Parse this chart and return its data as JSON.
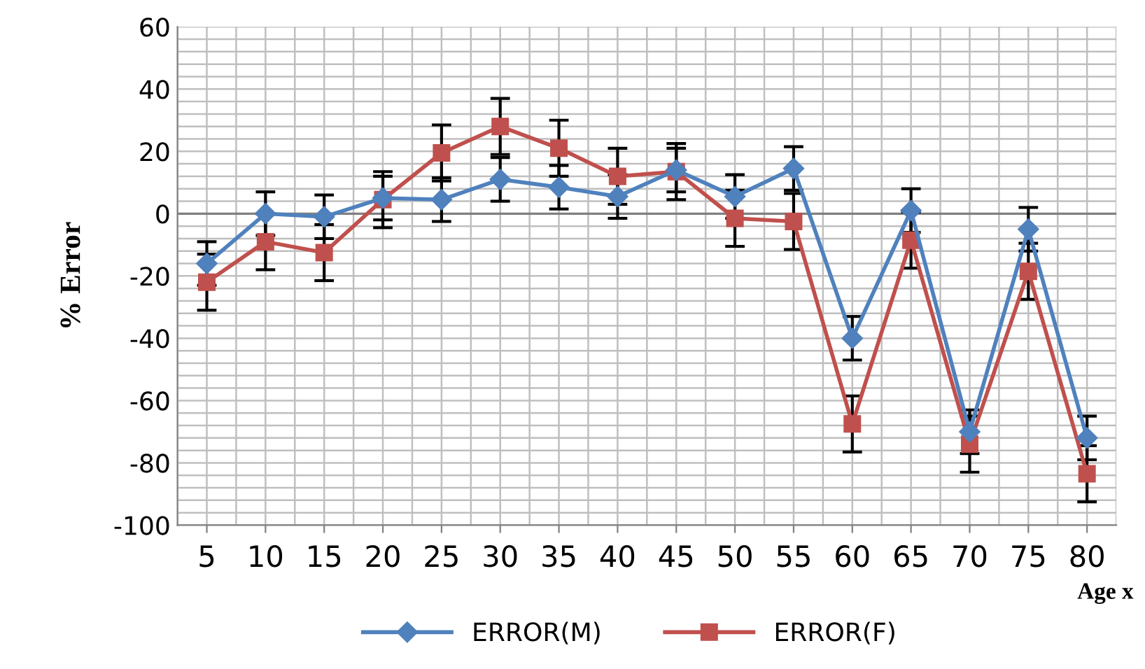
{
  "chart_data": {
    "type": "line",
    "xlabel": "Age x",
    "ylabel": "% Error",
    "categories": [
      "5",
      "10",
      "15",
      "20",
      "25",
      "30",
      "35",
      "40",
      "45",
      "50",
      "55",
      "60",
      "65",
      "70",
      "75",
      "80"
    ],
    "series": [
      {
        "name": "ERROR(M)",
        "color": "#4f81bd",
        "marker": "diamond",
        "values": [
          -16,
          0,
          -1,
          5,
          4.5,
          11,
          8.5,
          5.5,
          14,
          5.5,
          14.5,
          -40,
          1,
          -70,
          -5,
          -72
        ],
        "errors": [
          7,
          7,
          7,
          7,
          7,
          7,
          7,
          7,
          7,
          7,
          7,
          7,
          7,
          7,
          7,
          7
        ]
      },
      {
        "name": "ERROR(F)",
        "color": "#c0504d",
        "marker": "square",
        "values": [
          -22,
          -9,
          -12.5,
          4.5,
          19.5,
          28,
          21,
          12,
          13.5,
          -1.5,
          -2.5,
          -67.5,
          -8.5,
          -74,
          -18.5,
          -83.5
        ],
        "errors": [
          9,
          9,
          9,
          9,
          9,
          9,
          9,
          9,
          9,
          9,
          9,
          9,
          9,
          9,
          9,
          9
        ]
      }
    ],
    "ylim": [
      -100,
      60
    ],
    "yticks": [
      -100,
      -80,
      -60,
      -40,
      -20,
      0,
      20,
      40,
      60
    ],
    "grid": true,
    "legend": "bottom",
    "line_style": "solid"
  }
}
